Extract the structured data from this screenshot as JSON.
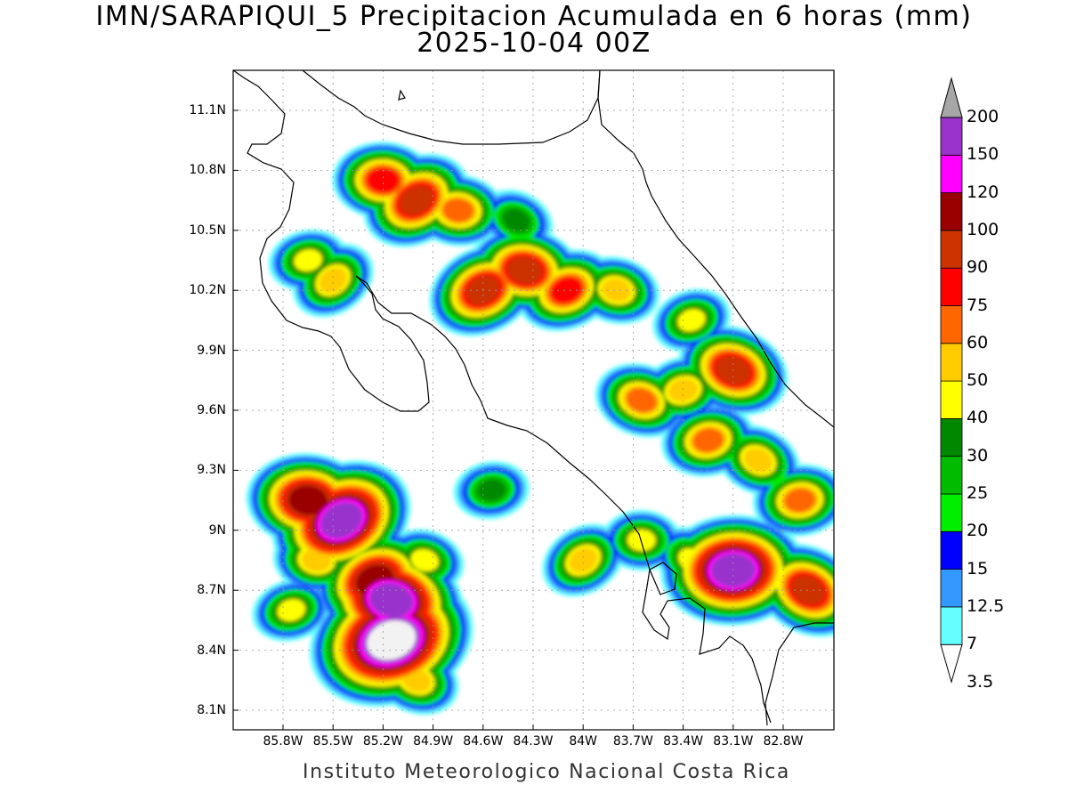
{
  "title_line1": "IMN/SARAPIQUI_5 Precipitacion Acumulada en 6 horas (mm)",
  "title_line2": "2025-10-04 00Z",
  "credit": "Instituto Meteorologico Nacional Costa Rica",
  "lat_labels": [
    "11.1N",
    "10.8N",
    "10.5N",
    "10.2N",
    "9.9N",
    "9.6N",
    "9.3N",
    "9N",
    "8.7N",
    "8.4N",
    "8.1N"
  ],
  "lon_labels": [
    "85.8W",
    "85.5W",
    "85.2W",
    "84.9W",
    "84.6W",
    "84.3W",
    "84W",
    "83.7W",
    "83.4W",
    "83.1W",
    "82.8W"
  ],
  "colorbar": {
    "labels": [
      "200",
      "150",
      "120",
      "100",
      "90",
      "75",
      "60",
      "50",
      "40",
      "30",
      "25",
      "20",
      "15",
      "12.5",
      "7",
      "3.5"
    ],
    "colors_bottom_to_top": [
      "#66ffff",
      "#3399ff",
      "#0000ff",
      "#00ee00",
      "#00bb00",
      "#008800",
      "#ffff00",
      "#ffcc00",
      "#ff6600",
      "#ff0000",
      "#cc3300",
      "#990000",
      "#ff00ff",
      "#9933cc",
      "#f2f2f2",
      "#a6a6a6"
    ]
  },
  "precip_cells": [
    {
      "lon": -85.5,
      "lat": 10.25,
      "v": 40
    },
    {
      "lon": -85.2,
      "lat": 10.75,
      "v": 60
    },
    {
      "lon": -85.0,
      "lat": 10.65,
      "v": 75
    },
    {
      "lon": -84.75,
      "lat": 10.6,
      "v": 50
    },
    {
      "lon": -84.6,
      "lat": 10.2,
      "v": 75
    },
    {
      "lon": -84.35,
      "lat": 10.3,
      "v": 75
    },
    {
      "lon": -84.1,
      "lat": 10.2,
      "v": 60
    },
    {
      "lon": -83.8,
      "lat": 10.2,
      "v": 40
    },
    {
      "lon": -83.35,
      "lat": 10.05,
      "v": 30
    },
    {
      "lon": -83.65,
      "lat": 9.65,
      "v": 50
    },
    {
      "lon": -83.4,
      "lat": 9.7,
      "v": 40
    },
    {
      "lon": -83.1,
      "lat": 9.8,
      "v": 75
    },
    {
      "lon": -83.25,
      "lat": 9.45,
      "v": 50
    },
    {
      "lon": -82.95,
      "lat": 9.35,
      "v": 40
    },
    {
      "lon": -82.7,
      "lat": 9.15,
      "v": 50
    },
    {
      "lon": -82.65,
      "lat": 8.7,
      "v": 75
    },
    {
      "lon": -83.1,
      "lat": 8.8,
      "v": 120
    },
    {
      "lon": -83.35,
      "lat": 8.85,
      "v": 30
    },
    {
      "lon": -83.65,
      "lat": 8.95,
      "v": 30
    },
    {
      "lon": -84.0,
      "lat": 8.85,
      "v": 40
    },
    {
      "lon": -85.65,
      "lat": 9.15,
      "v": 90
    },
    {
      "lon": -85.45,
      "lat": 9.05,
      "v": 120
    },
    {
      "lon": -85.6,
      "lat": 8.85,
      "v": 40
    },
    {
      "lon": -85.25,
      "lat": 8.75,
      "v": 90
    },
    {
      "lon": -85.15,
      "lat": 8.65,
      "v": 120
    },
    {
      "lon": -85.15,
      "lat": 8.45,
      "v": 150
    },
    {
      "lon": -84.95,
      "lat": 8.85,
      "v": 30
    },
    {
      "lon": -85.75,
      "lat": 8.6,
      "v": 30
    },
    {
      "lon": -85.0,
      "lat": 8.25,
      "v": 40
    },
    {
      "lon": -85.65,
      "lat": 10.35,
      "v": 30
    },
    {
      "lon": -84.4,
      "lat": 10.55,
      "v": 25
    },
    {
      "lon": -84.55,
      "lat": 9.2,
      "v": 25
    }
  ]
}
